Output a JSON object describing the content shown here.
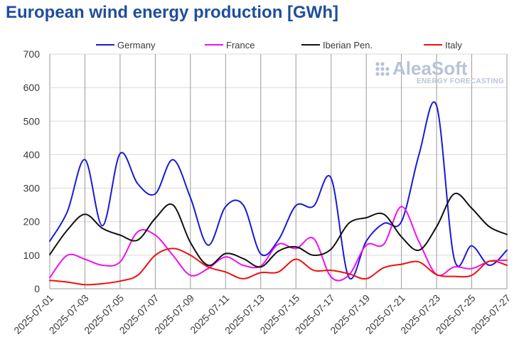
{
  "logo": {
    "name": "AleaSoft",
    "tagline": "ENERGY FORECASTING"
  },
  "chart_data": {
    "type": "line",
    "title": "European wind energy production [GWh]",
    "xlabel": "",
    "ylabel": "",
    "ylim": [
      0,
      700
    ],
    "yticks": [
      0,
      100,
      200,
      300,
      400,
      500,
      600,
      700
    ],
    "grid": true,
    "legend_position": "top",
    "x": [
      "2025-07-01",
      "2025-07-02",
      "2025-07-03",
      "2025-07-04",
      "2025-07-05",
      "2025-07-06",
      "2025-07-07",
      "2025-07-08",
      "2025-07-09",
      "2025-07-10",
      "2025-07-11",
      "2025-07-12",
      "2025-07-13",
      "2025-07-14",
      "2025-07-15",
      "2025-07-16",
      "2025-07-17",
      "2025-07-18",
      "2025-07-19",
      "2025-07-20",
      "2025-07-21",
      "2025-07-22",
      "2025-07-23",
      "2025-07-24",
      "2025-07-25",
      "2025-07-26",
      "2025-07-27"
    ],
    "xtick_labels": [
      "2025-07-01",
      "2025-07-03",
      "2025-07-05",
      "2025-07-07",
      "2025-07-09",
      "2025-07-11",
      "2025-07-13",
      "2025-07-15",
      "2025-07-17",
      "2025-07-19",
      "2025-07-21",
      "2025-07-23",
      "2025-07-25",
      "2025-07-27"
    ],
    "series": [
      {
        "name": "Germany",
        "color": "#1a1ad6",
        "values": [
          142,
          230,
          385,
          188,
          403,
          313,
          283,
          385,
          272,
          130,
          245,
          250,
          104,
          145,
          248,
          246,
          330,
          35,
          142,
          195,
          200,
          400,
          546,
          90,
          128,
          70,
          115
        ]
      },
      {
        "name": "France",
        "color": "#ee11ee",
        "values": [
          33,
          100,
          88,
          70,
          80,
          170,
          160,
          100,
          40,
          60,
          95,
          70,
          68,
          133,
          120,
          150,
          35,
          40,
          130,
          133,
          245,
          140,
          42,
          65,
          60,
          82,
          85
        ]
      },
      {
        "name": "Iberian Pen.",
        "color": "#111111",
        "values": [
          102,
          175,
          222,
          180,
          160,
          145,
          210,
          250,
          138,
          70,
          105,
          90,
          65,
          112,
          125,
          100,
          118,
          195,
          212,
          222,
          155,
          115,
          185,
          283,
          240,
          185,
          162
        ]
      },
      {
        "name": "Italy",
        "color": "#ee1111",
        "values": [
          25,
          20,
          12,
          15,
          23,
          40,
          100,
          120,
          100,
          65,
          50,
          30,
          48,
          50,
          88,
          55,
          55,
          45,
          30,
          63,
          73,
          80,
          42,
          37,
          40,
          82,
          70
        ]
      }
    ]
  }
}
